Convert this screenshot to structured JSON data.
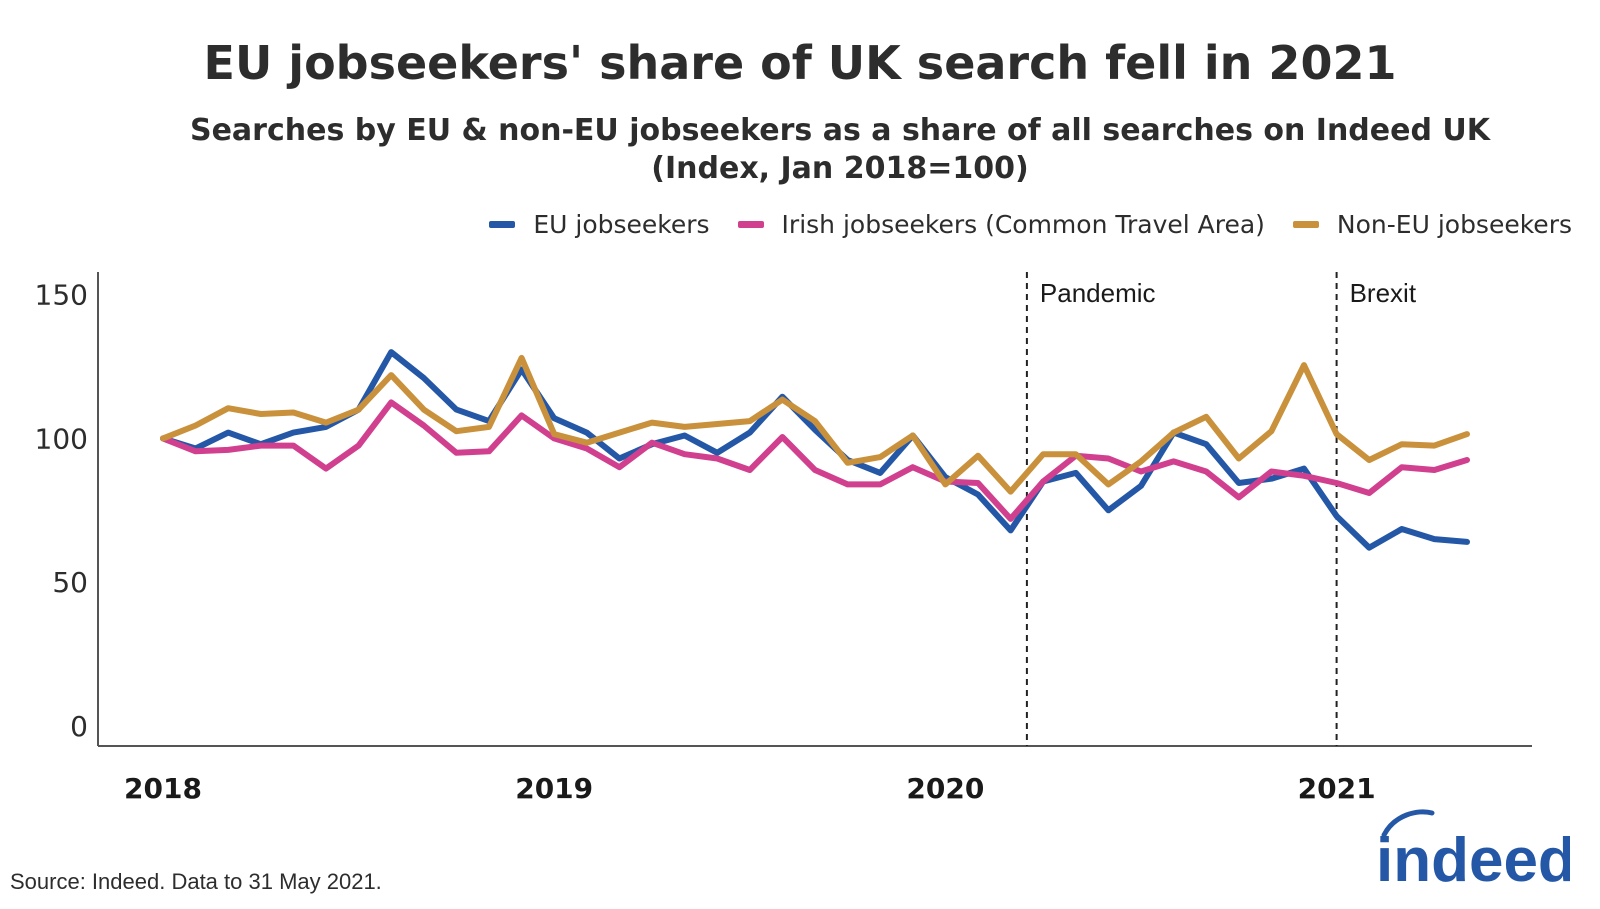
{
  "title": "EU jobseekers' share of UK search fell in 2021",
  "subtitle_line1": "Searches by EU & non-EU jobseekers as a share of all searches on Indeed UK",
  "subtitle_line2": "(Index, Jan 2018=100)",
  "source": "Source: Indeed. Data to 31 May 2021.",
  "logo_text": "indeed",
  "colors": {
    "eu": "#2557a7",
    "irish": "#d0408f",
    "noneu": "#c9913b"
  },
  "chart_data": {
    "type": "line",
    "ylim": [
      0,
      160
    ],
    "yticks": [
      0,
      50,
      100,
      150
    ],
    "xticks": [
      {
        "label": "2018",
        "index": 0
      },
      {
        "label": "2019",
        "index": 12
      },
      {
        "label": "2020",
        "index": 24
      },
      {
        "label": "2021",
        "index": 36
      }
    ],
    "grid": false,
    "legend": "top-right",
    "annotations": [
      {
        "label": "Pandemic",
        "index": 26.5
      },
      {
        "label": "Brexit",
        "index": 36
      }
    ],
    "series": [
      {
        "name": "EU jobseekers",
        "color": "#2557a7",
        "values": [
          100,
          96.5,
          102,
          98,
          102,
          104,
          110,
          130,
          121,
          110,
          106,
          124,
          107,
          102,
          93,
          98,
          101,
          95,
          102,
          114.5,
          103,
          92.5,
          88,
          101,
          86.5,
          80.5,
          68,
          85,
          88,
          75,
          83.5,
          102,
          98,
          84.5,
          86,
          89.5,
          73,
          62,
          68.5,
          65,
          64
        ]
      },
      {
        "name": "Irish jobseekers (Common Travel Area)",
        "color": "#d0408f",
        "values": [
          100,
          95.5,
          96,
          97.5,
          97.5,
          89.5,
          97.5,
          112.5,
          104.5,
          95,
          95.5,
          108,
          100,
          96.5,
          90,
          98.5,
          94.5,
          93,
          89,
          100.5,
          89,
          84,
          84,
          90,
          85,
          84.5,
          72,
          85,
          94,
          93,
          88.5,
          92,
          88.5,
          79.5,
          88.5,
          87,
          84.5,
          81,
          90,
          89,
          92.5
        ]
      },
      {
        "name": "Non-EU jobseekers",
        "color": "#c9913b",
        "values": [
          100,
          104.5,
          110.5,
          108.5,
          109,
          105.5,
          110,
          122,
          110,
          102.5,
          104,
          128,
          101.5,
          98.5,
          102,
          105.5,
          104,
          105,
          106,
          113.5,
          106,
          91.5,
          93.5,
          101,
          84,
          94,
          81.5,
          94.5,
          94.5,
          84,
          92,
          102,
          107.5,
          93,
          102.5,
          125.5,
          101.5,
          92.5,
          98,
          97.5,
          101.5
        ]
      }
    ]
  }
}
